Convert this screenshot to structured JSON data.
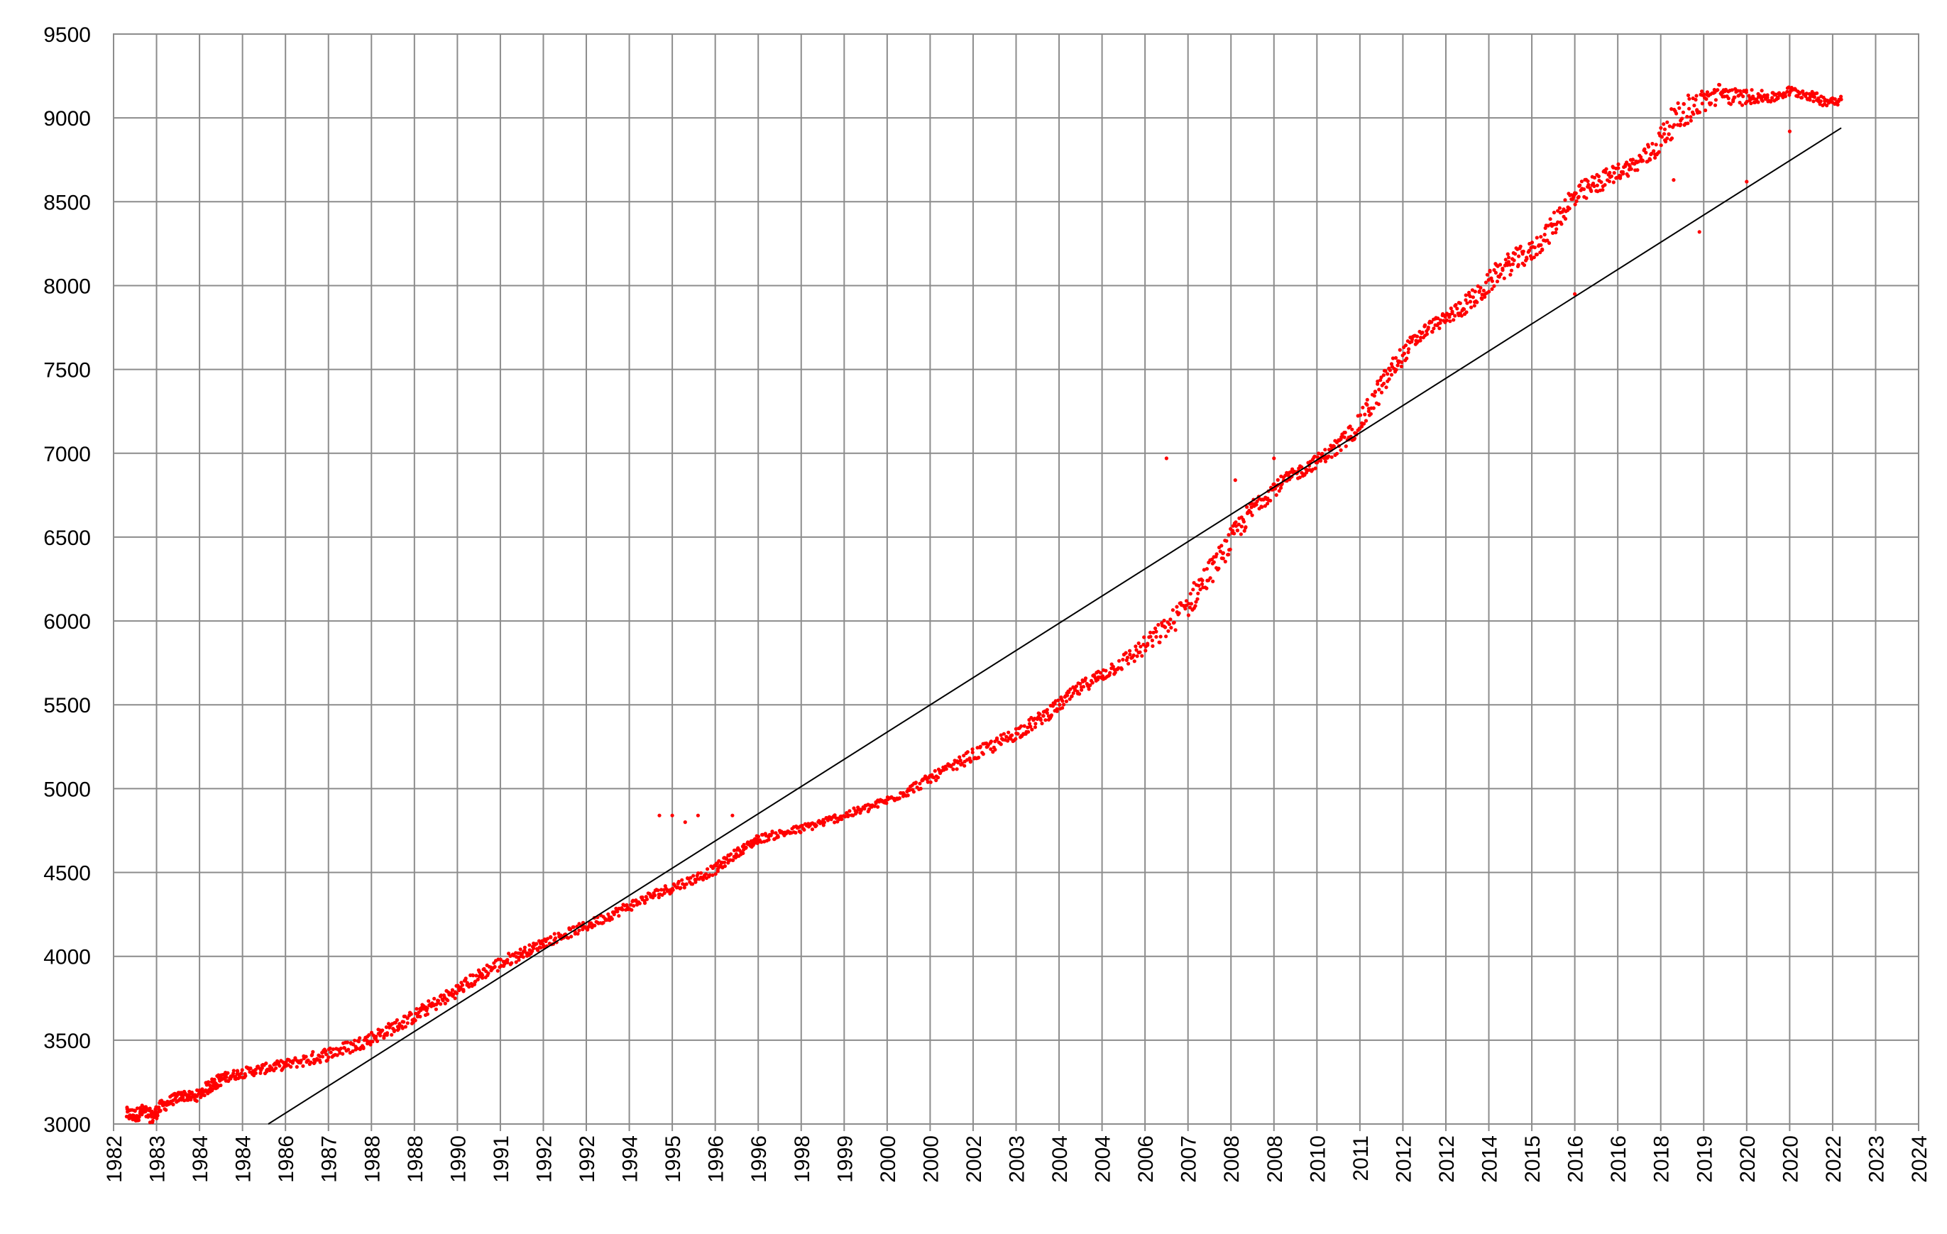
{
  "chart_data": {
    "type": "scatter",
    "title": "",
    "xlabel": "",
    "ylabel": "",
    "xlim": [
      1982.0,
      2024.0
    ],
    "ylim": [
      3000,
      9500
    ],
    "grid": true,
    "legend": "none",
    "colors": {
      "points": "#ff0000",
      "trendline": "#000000",
      "grid": "#8c8c8c"
    },
    "x_tick_labels": [
      "1982",
      "1983",
      "1984",
      "1984",
      "1986",
      "1987",
      "1988",
      "1988",
      "1990",
      "1991",
      "1992",
      "1992",
      "1994",
      "1995",
      "1996",
      "1996",
      "1998",
      "1999",
      "2000",
      "2000",
      "2002",
      "2003",
      "2004",
      "2004",
      "2006",
      "2007",
      "2008",
      "2008",
      "2010",
      "2011",
      "2012",
      "2012",
      "2014",
      "2015",
      "2016",
      "2016",
      "2018",
      "2019",
      "2020",
      "2020",
      "2022",
      "2023",
      "2024"
    ],
    "y_ticks": [
      3000,
      3500,
      4000,
      4500,
      5000,
      5500,
      6000,
      6500,
      7000,
      7500,
      8000,
      8500,
      9000,
      9500
    ],
    "trendline": {
      "x": [
        1985.6,
        2022.2
      ],
      "y": [
        3000,
        8940
      ]
    },
    "series": [
      {
        "x": [
          1982.3,
          1982.5,
          1982.7,
          1982.9,
          1983.1,
          1983.4,
          1983.6,
          1983.9,
          1984.2,
          1984.4,
          1984.6,
          1984.9,
          1985.3,
          1985.7,
          1986.1,
          1986.6,
          1987.0,
          1987.5,
          1987.9,
          1988.3,
          1988.7,
          1989.1,
          1989.5,
          1989.9,
          1990.3,
          1990.7,
          1991.2,
          1991.6,
          1992.0,
          1992.5,
          1993.0,
          1993.5,
          1994.0,
          1994.5,
          1995.0,
          1995.5,
          1996.0,
          1996.3,
          1996.7,
          1997.0,
          1997.5,
          1998.0,
          1998.5,
          1999.0,
          1999.5,
          2000.0,
          2000.5,
          2001.0,
          2001.5,
          2002.0,
          2002.5,
          2003.0,
          2003.4,
          2003.8,
          2004.2,
          2004.6,
          2005.0,
          2005.5,
          2006.0,
          2006.5,
          2007.0,
          2007.4,
          2007.8,
          2008.2,
          2008.6,
          2009.0,
          2009.4,
          2009.8,
          2010.2,
          2010.6,
          2011.0,
          2011.4,
          2011.8,
          2012.2,
          2012.6,
          2013.0,
          2013.4,
          2013.8,
          2014.2,
          2014.6,
          2015.0,
          2015.4,
          2015.8,
          2016.2,
          2016.6,
          2017.0,
          2017.4,
          2017.8,
          2018.2,
          2018.6,
          2019.0,
          2019.4,
          2019.8,
          2020.2,
          2020.6,
          2021.0,
          2021.4,
          2021.8,
          2022.2
        ],
        "y": [
          3060,
          3050,
          3080,
          3040,
          3100,
          3150,
          3170,
          3160,
          3220,
          3250,
          3280,
          3300,
          3320,
          3340,
          3360,
          3390,
          3420,
          3460,
          3500,
          3550,
          3600,
          3660,
          3720,
          3780,
          3850,
          3920,
          3980,
          4030,
          4080,
          4130,
          4180,
          4240,
          4300,
          4360,
          4410,
          4460,
          4520,
          4580,
          4650,
          4700,
          4730,
          4760,
          4800,
          4840,
          4880,
          4930,
          4990,
          5060,
          5130,
          5200,
          5260,
          5330,
          5390,
          5460,
          5540,
          5620,
          5680,
          5760,
          5850,
          5960,
          6100,
          6250,
          6400,
          6560,
          6700,
          6790,
          6860,
          6920,
          6990,
          7060,
          7180,
          7350,
          7520,
          7650,
          7750,
          7800,
          7880,
          7950,
          8080,
          8150,
          8200,
          8320,
          8480,
          8560,
          8620,
          8680,
          8720,
          8800,
          8950,
          9050,
          9100,
          9150,
          9120,
          9130,
          9120,
          9160,
          9140,
          9100,
          9110
        ],
        "spread": [
          40,
          40,
          40,
          40,
          40,
          30,
          30,
          30,
          40,
          40,
          30,
          30,
          30,
          30,
          30,
          40,
          40,
          40,
          40,
          40,
          40,
          40,
          40,
          40,
          40,
          40,
          40,
          30,
          30,
          30,
          30,
          30,
          30,
          30,
          30,
          30,
          30,
          30,
          25,
          25,
          25,
          25,
          25,
          25,
          25,
          25,
          30,
          30,
          30,
          40,
          40,
          40,
          40,
          40,
          40,
          40,
          40,
          50,
          60,
          70,
          80,
          80,
          70,
          70,
          60,
          50,
          40,
          40,
          40,
          60,
          60,
          80,
          60,
          50,
          40,
          40,
          60,
          60,
          70,
          70,
          60,
          70,
          80,
          70,
          60,
          50,
          50,
          70,
          90,
          90,
          70,
          60,
          50,
          40,
          30,
          30,
          30,
          30,
          30
        ],
        "outliers": {
          "x": [
            1994.7,
            1995.0,
            1995.3,
            1995.6,
            1996.4,
            2006.5,
            2008.1,
            2009.0,
            2018.9,
            2018.3,
            2016.0,
            2020.0,
            2021.0
          ],
          "y": [
            4840,
            4840,
            4800,
            4840,
            4840,
            6970,
            6840,
            6970,
            8320,
            8630,
            7950,
            8620,
            8920
          ]
        }
      }
    ]
  }
}
